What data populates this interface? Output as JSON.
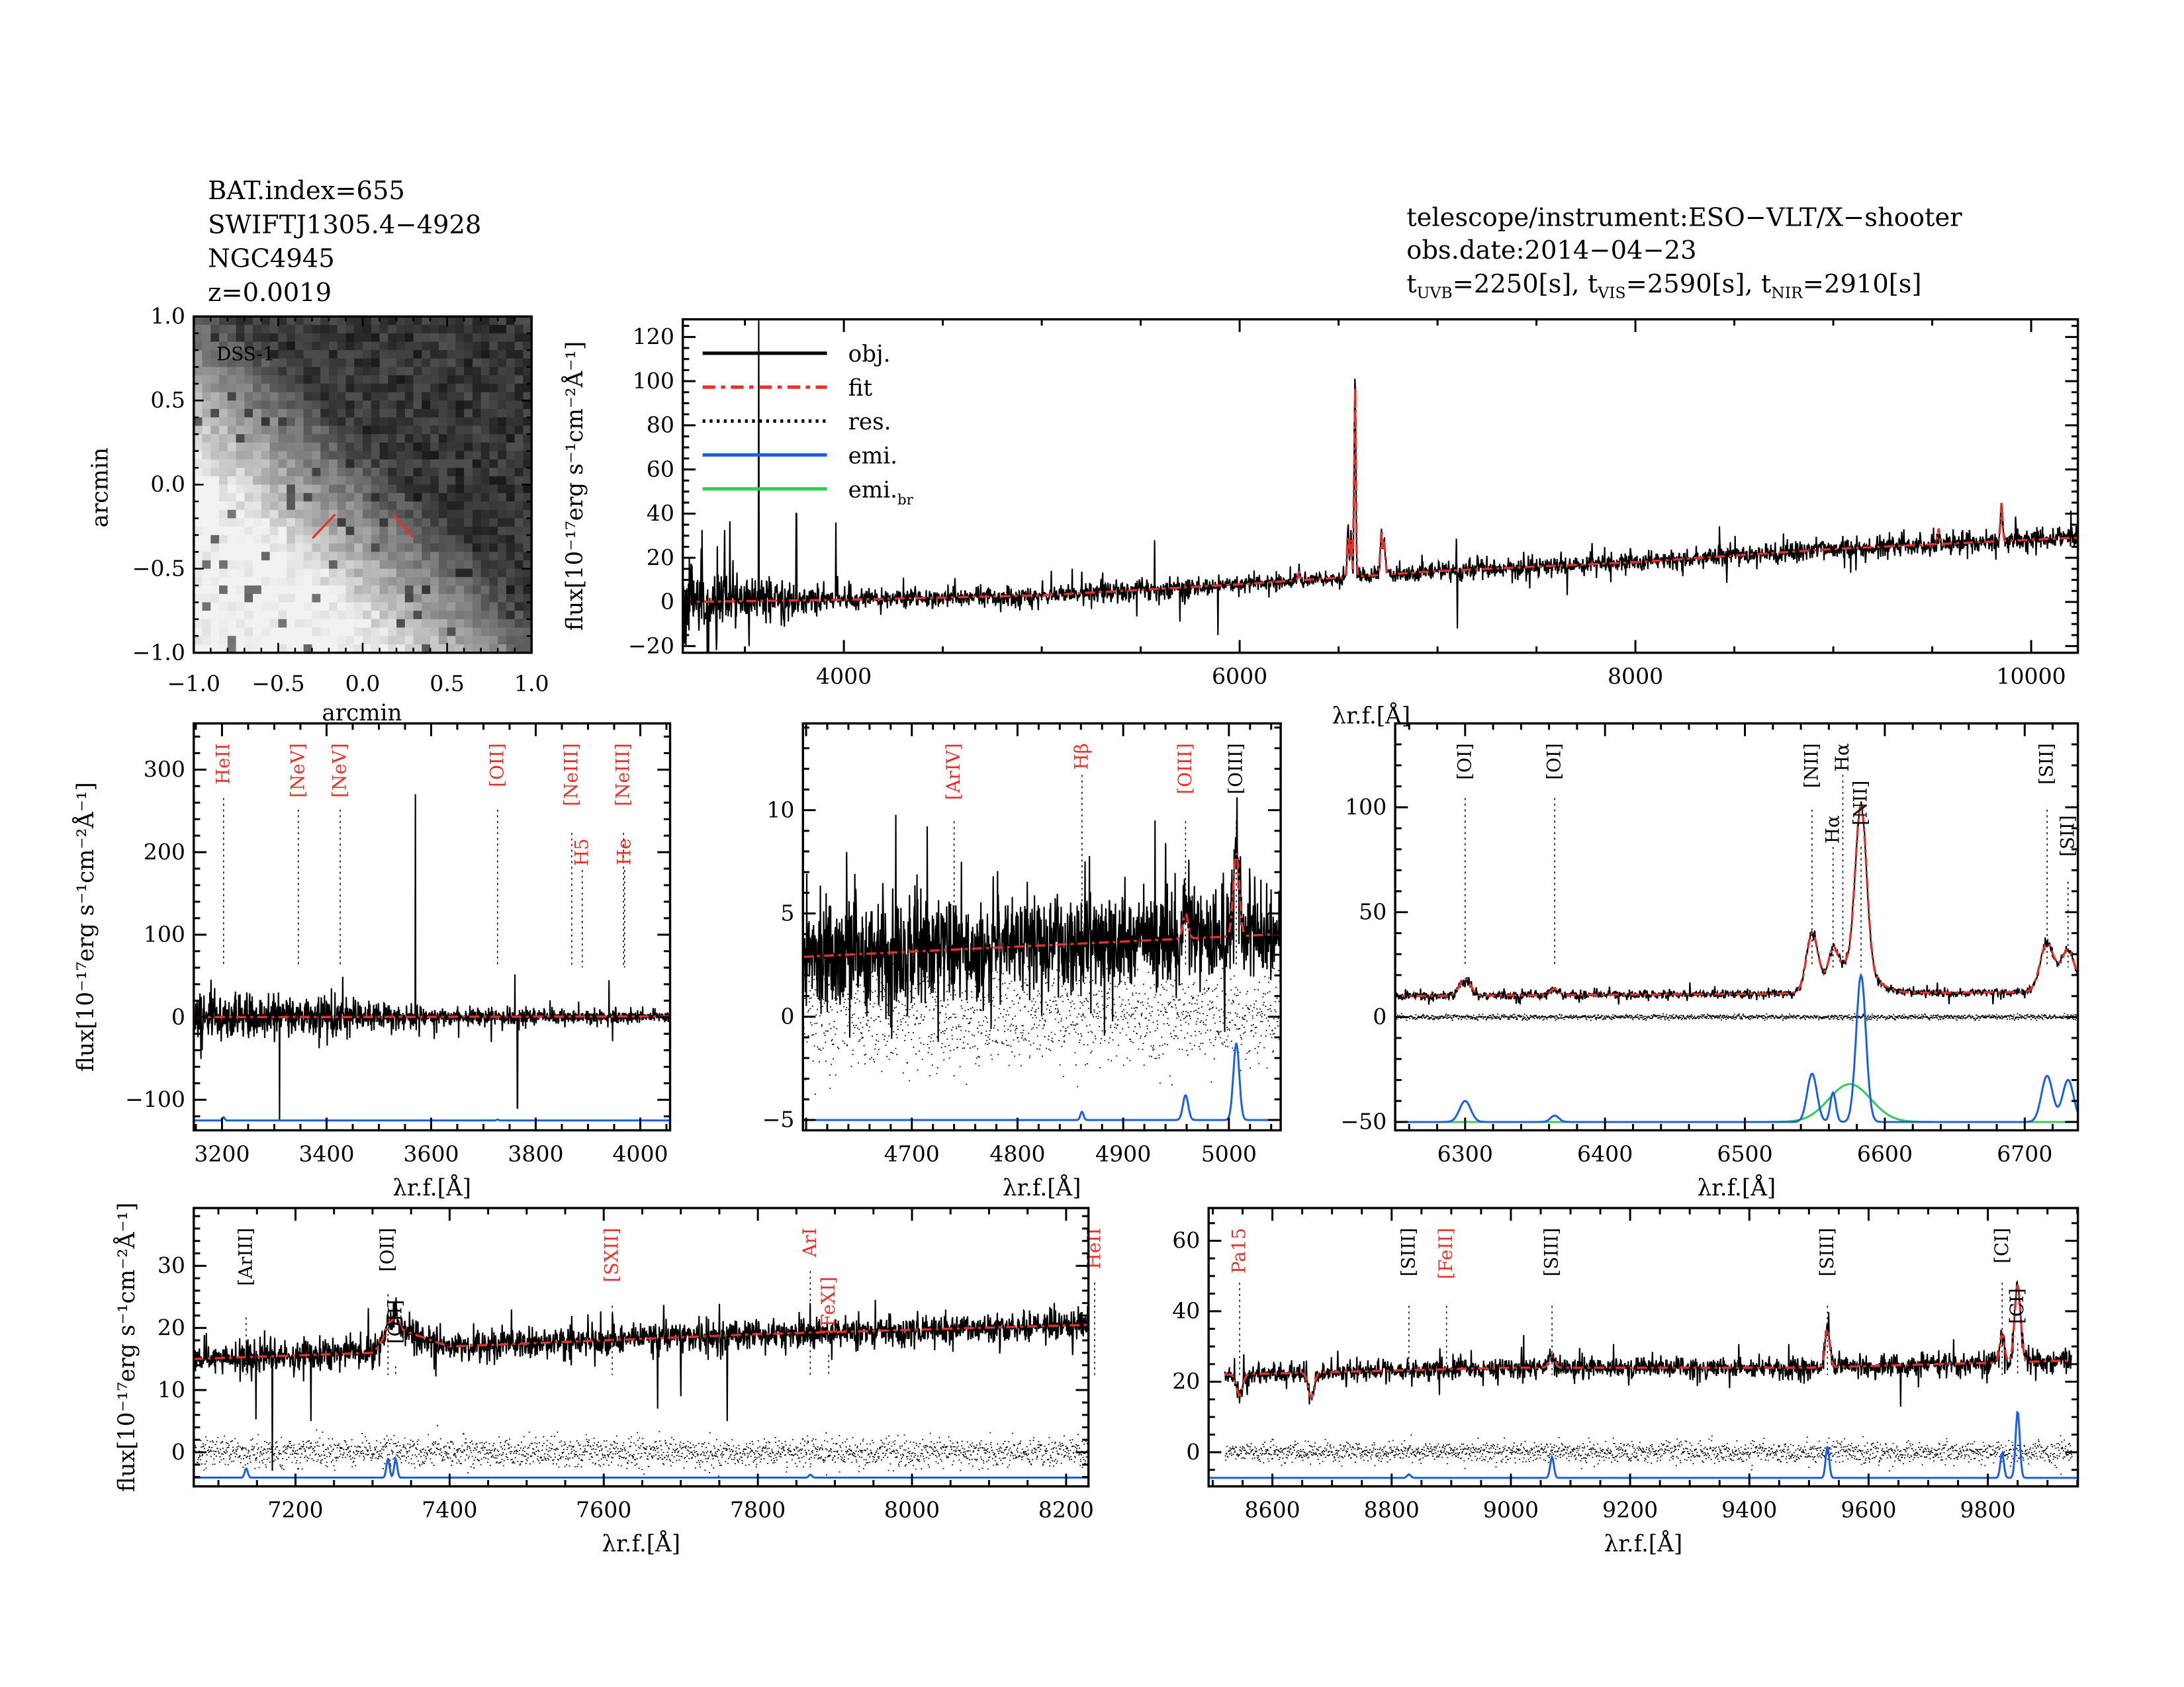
{
  "header": {
    "left": [
      "BAT.index=655",
      "SWIFTJ1305.4−4928",
      "NGC4945",
      "z=0.0019"
    ],
    "telescope": "telescope/instrument:ESO−VLT/X−shooter",
    "obs_date": "obs.date:2014−04−23",
    "exposures": [
      {
        "t": "t",
        "band": "UVB",
        "value": "=2250[s],"
      },
      {
        "t": "t",
        "band": "VIS",
        "value": "=2590[s],"
      },
      {
        "t": "t",
        "band": "NIR",
        "value": "=2910[s]"
      }
    ]
  },
  "image_panel": {
    "label": "DSS-1",
    "xlabel": "arcmin",
    "ylabel": "arcmin",
    "xticks": [
      "−1.0",
      "−0.5",
      "0.0",
      "0.5",
      "1.0"
    ],
    "yticks": [
      "−1.0",
      "−0.5",
      "0.0",
      "0.5",
      "1.0"
    ],
    "marker_color": "#e8302a"
  },
  "labels": {
    "flux_ylabel": "flux[10⁻¹⁷erg s⁻¹cm⁻²Å⁻¹]",
    "lambda": "λ",
    "lambda_sub": "r.f.",
    "lambda_unit": "[Å]"
  },
  "legend": [
    {
      "label": "obj.",
      "style": "solid",
      "color": "#000000"
    },
    {
      "label": "fit",
      "style": "dashdot",
      "color": "#e8302a"
    },
    {
      "label": "res.",
      "style": "dotted",
      "color": "#000000"
    },
    {
      "label": "emi.",
      "style": "solid",
      "color": "#1a5ee8"
    },
    {
      "label": "emi.",
      "sub": "br",
      "style": "solid",
      "color": "#2ecc55"
    }
  ],
  "colors": {
    "obj": "#000000",
    "fit": "#e8302a",
    "res": "#000000",
    "emi": "#1a5ee8",
    "emi_br": "#2ecc55",
    "line_label_red": "#e8302a"
  },
  "chart_data": [
    {
      "id": "full",
      "type": "line",
      "xlabel": "λr.f.[Å]",
      "ylabel": "flux[10⁻¹⁷erg s⁻¹cm⁻²Å⁻¹]",
      "xlim": [
        3186,
        10236
      ],
      "ylim": [
        -23,
        128
      ],
      "xticks": [
        4000,
        6000,
        8000,
        10000
      ],
      "yticks": [
        -20,
        0,
        20,
        40,
        60,
        80,
        100,
        120
      ],
      "continuum": [
        [
          3186,
          0
        ],
        [
          4000,
          1
        ],
        [
          5000,
          3
        ],
        [
          6000,
          8
        ],
        [
          6500,
          11
        ],
        [
          7000,
          14
        ],
        [
          8000,
          18
        ],
        [
          9000,
          24
        ],
        [
          10200,
          29
        ]
      ],
      "noise": [
        [
          3186,
          9
        ],
        [
          3500,
          6
        ],
        [
          4000,
          1.8
        ],
        [
          5500,
          2.5
        ],
        [
          6000,
          1.8
        ],
        [
          10200,
          2.5
        ]
      ],
      "lines": [
        [
          6300,
          4,
          4
        ],
        [
          6548,
          25,
          4
        ],
        [
          6563,
          18,
          4
        ],
        [
          6583,
          90,
          4
        ],
        [
          6716,
          20,
          5
        ],
        [
          6731,
          16,
          5
        ],
        [
          9531,
          8,
          4
        ],
        [
          9850,
          18,
          5
        ]
      ],
      "spikes": [
        [
          3570,
          128
        ],
        [
          3760,
          40
        ],
        [
          3960,
          36
        ],
        [
          3310,
          -25
        ],
        [
          5570,
          28
        ],
        [
          5890,
          -15
        ],
        [
          7100,
          -12
        ]
      ],
      "show_residual": false,
      "emission_baseline": null,
      "line_markers": []
    },
    {
      "id": "uv",
      "type": "line",
      "xlabel": "λr.f.[Å]",
      "ylabel": "flux[10⁻¹⁷erg s⁻¹cm⁻²Å⁻¹]",
      "xlim": [
        3146,
        4057
      ],
      "ylim": [
        -137,
        356
      ],
      "xticks": [
        3200,
        3400,
        3600,
        3800,
        4000
      ],
      "yticks": [
        -100,
        0,
        100,
        200,
        300
      ],
      "continuum": [
        [
          3146,
          0
        ],
        [
          4057,
          1
        ]
      ],
      "noise": [
        [
          3146,
          14
        ],
        [
          3400,
          10
        ],
        [
          3600,
          5
        ],
        [
          4057,
          3.5
        ]
      ],
      "lines": [],
      "spikes": [
        [
          3570,
          270
        ],
        [
          3760,
          52
        ],
        [
          3765,
          -110
        ],
        [
          3310,
          -125
        ],
        [
          3940,
          45
        ],
        [
          3715,
          -30
        ]
      ],
      "show_residual": false,
      "emission_baseline": -125,
      "emission": [
        [
          3203,
          4,
          2
        ],
        [
          3727,
          1,
          2
        ]
      ],
      "line_markers": [
        {
          "label": "HeII",
          "wave": 3203,
          "color": "red"
        },
        {
          "label": "[NeV]",
          "wave": 3346,
          "color": "red"
        },
        {
          "label": "[NeV]",
          "wave": 3426,
          "color": "red"
        },
        {
          "label": "[OII]",
          "wave": 3727,
          "color": "red"
        },
        {
          "label": "[NeIII]",
          "wave": 3869,
          "color": "red"
        },
        {
          "label": "H5",
          "wave": 3889,
          "color": "red"
        },
        {
          "label": "[NeIII]",
          "wave": 3968,
          "color": "red"
        },
        {
          "label": "He",
          "wave": 3970,
          "color": "red"
        }
      ]
    },
    {
      "id": "hbeta",
      "type": "line",
      "xlabel": "λr.f.[Å]",
      "ylabel": "",
      "xlim": [
        4597,
        5049
      ],
      "ylim": [
        -5.5,
        14.2
      ],
      "xticks": [
        4700,
        4800,
        4900,
        5000
      ],
      "yticks": [
        -5,
        0,
        5,
        10
      ],
      "continuum": [
        [
          4597,
          2.9
        ],
        [
          5049,
          4.0
        ]
      ],
      "noise": [
        [
          4597,
          1.3
        ],
        [
          5049,
          1.0
        ]
      ],
      "lines": [
        [
          4959,
          1.2,
          2.5
        ],
        [
          5007,
          4.0,
          2.8
        ]
      ],
      "spikes": [
        [
          4930,
          9.5
        ],
        [
          4962,
          7.6
        ],
        [
          4777,
          6.8
        ],
        [
          4775,
          -0.6
        ]
      ],
      "show_residual": true,
      "residual_scatter": true,
      "residual_offset": 0,
      "emission_baseline": -5,
      "emission": [
        [
          4861,
          0.4,
          1.5
        ],
        [
          4959,
          1.2,
          2.5
        ],
        [
          5007,
          3.7,
          2.8
        ]
      ],
      "line_markers": [
        {
          "label": "[ArIV]",
          "wave": 4740,
          "color": "red"
        },
        {
          "label": "Hβ",
          "wave": 4861,
          "color": "red"
        },
        {
          "label": "[OIII]",
          "wave": 4959,
          "color": "red"
        },
        {
          "label": "[OIII]",
          "wave": 5007,
          "color": "black"
        }
      ]
    },
    {
      "id": "halpha",
      "type": "line",
      "xlabel": "λr.f.[Å]",
      "ylabel": "",
      "xlim": [
        6250,
        6738
      ],
      "ylim": [
        -54,
        140
      ],
      "xticks": [
        6300,
        6400,
        6500,
        6600,
        6700
      ],
      "yticks": [
        -50,
        0,
        50,
        100
      ],
      "continuum": [
        [
          6250,
          10
        ],
        [
          6738,
          12
        ]
      ],
      "noise": [
        [
          6250,
          1.0
        ],
        [
          6738,
          1.0
        ]
      ],
      "lines": [
        [
          6300,
          8,
          4
        ],
        [
          6364,
          3,
          3
        ],
        [
          6548,
          26,
          4
        ],
        [
          6563,
          12,
          3
        ],
        [
          6575,
          14,
          15
        ],
        [
          6583,
          78,
          4
        ],
        [
          6716,
          23,
          5
        ],
        [
          6731,
          20,
          5
        ]
      ],
      "spikes": [],
      "show_residual": true,
      "residual_scatter": false,
      "residual_offset": 0,
      "emission_baseline": -50,
      "emission": [
        [
          6300,
          10,
          4
        ],
        [
          6364,
          3,
          3
        ],
        [
          6548,
          23,
          3.5
        ],
        [
          6563,
          14,
          2
        ],
        [
          6583,
          70,
          3.5
        ],
        [
          6716,
          22,
          4
        ],
        [
          6731,
          20,
          4
        ]
      ],
      "emission_broad": [
        [
          6575,
          18,
          15
        ]
      ],
      "line_markers": [
        {
          "label": "[OI]",
          "wave": 6300,
          "color": "black"
        },
        {
          "label": "[OI]",
          "wave": 6364,
          "color": "black"
        },
        {
          "label": "[NII]",
          "wave": 6548,
          "color": "black"
        },
        {
          "label": "Hα",
          "wave": 6563,
          "color": "black"
        },
        {
          "label": "Hα",
          "wave": 6570,
          "color": "black"
        },
        {
          "label": "[NII]",
          "wave": 6583,
          "color": "black"
        },
        {
          "label": "[SII]",
          "wave": 6716,
          "color": "black"
        },
        {
          "label": "[SII]",
          "wave": 6731,
          "color": "black"
        }
      ]
    },
    {
      "id": "red",
      "type": "line",
      "xlabel": "λr.f.[Å]",
      "ylabel": "flux[10⁻¹⁷erg s⁻¹cm⁻²Å⁻¹]",
      "xlim": [
        7068,
        8229
      ],
      "ylim": [
        -5.5,
        39.3
      ],
      "xticks": [
        7200,
        7400,
        7600,
        7800,
        8000,
        8200
      ],
      "yticks": [
        0,
        10,
        20,
        30
      ],
      "continuum": [
        [
          7068,
          15
        ],
        [
          7300,
          16
        ],
        [
          7330,
          20
        ],
        [
          7400,
          17
        ],
        [
          7600,
          18
        ],
        [
          7800,
          19
        ],
        [
          8229,
          20.5
        ]
      ],
      "noise": [
        [
          7068,
          1.2
        ],
        [
          8229,
          1.2
        ]
      ],
      "lines": [
        [
          7320,
          2,
          4
        ],
        [
          7330,
          2,
          4
        ]
      ],
      "spikes": [
        [
          7170,
          -3
        ],
        [
          7220,
          5
        ],
        [
          7670,
          7
        ],
        [
          7700,
          9
        ],
        [
          7760,
          5
        ],
        [
          7868,
          24
        ]
      ],
      "show_residual": true,
      "residual_scatter": true,
      "residual_offset": 0,
      "emission_baseline": -4.1,
      "emission": [
        [
          7136,
          1.5,
          2
        ],
        [
          7320,
          3,
          2
        ],
        [
          7330,
          3,
          2
        ],
        [
          7868,
          0.5,
          2
        ]
      ],
      "line_markers": [
        {
          "label": "[ArIII]",
          "wave": 7136,
          "color": "black"
        },
        {
          "label": "[OII]",
          "wave": 7320,
          "color": "black"
        },
        {
          "label": "[OII]",
          "wave": 7330,
          "color": "black"
        },
        {
          "label": "[SXII]",
          "wave": 7611,
          "color": "red"
        },
        {
          "label": "ArI",
          "wave": 7868,
          "color": "red"
        },
        {
          "label": "[FeXI]",
          "wave": 7892,
          "color": "red"
        },
        {
          "label": "HeII",
          "wave": 8237,
          "color": "red"
        }
      ]
    },
    {
      "id": "nir",
      "type": "line",
      "xlabel": "λr.f.[Å]",
      "ylabel": "",
      "xlim": [
        8493,
        9951
      ],
      "ylim": [
        -9.7,
        69.3
      ],
      "xticks": [
        8600,
        8800,
        9000,
        9200,
        9400,
        9600,
        9800
      ],
      "yticks": [
        0,
        20,
        40,
        60
      ],
      "data_range": [
        8520,
        9940
      ],
      "continuum": [
        [
          8520,
          22
        ],
        [
          9000,
          24
        ],
        [
          9500,
          24
        ],
        [
          9940,
          26
        ]
      ],
      "noise": [
        [
          8520,
          1.3
        ],
        [
          9940,
          1.6
        ]
      ],
      "lines": [
        [
          8545,
          -6,
          5
        ],
        [
          8665,
          -7,
          5
        ],
        [
          9069,
          3,
          5
        ],
        [
          9531,
          11,
          4
        ],
        [
          9824,
          8,
          4
        ],
        [
          9850,
          22,
          5
        ]
      ],
      "spikes": [],
      "show_residual": true,
      "residual_scatter": true,
      "residual_offset": 0,
      "emission_baseline": -7.3,
      "emission_start": 8450,
      "emission": [
        [
          8829,
          1,
          3
        ],
        [
          9069,
          6,
          3
        ],
        [
          9531,
          9,
          3
        ],
        [
          9824,
          7,
          3
        ],
        [
          9850,
          19,
          3.5
        ]
      ],
      "line_markers": [
        {
          "label": "Pa15",
          "wave": 8545,
          "color": "red"
        },
        {
          "label": "[SIII]",
          "wave": 8829,
          "color": "black"
        },
        {
          "label": "[FeII]",
          "wave": 8892,
          "color": "red"
        },
        {
          "label": "[SIII]",
          "wave": 9069,
          "color": "black"
        },
        {
          "label": "[SIII]",
          "wave": 9531,
          "color": "black"
        },
        {
          "label": "[CI]",
          "wave": 9824,
          "color": "black"
        },
        {
          "label": "[CI]",
          "wave": 9850,
          "color": "black"
        }
      ]
    }
  ]
}
